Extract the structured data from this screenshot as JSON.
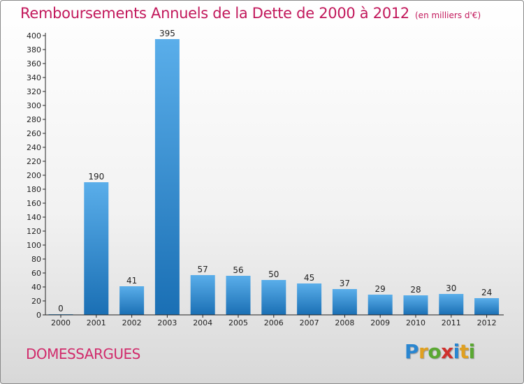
{
  "title": "Remboursements Annuels de la Dette de 2000 à 2012",
  "subtitle": "(en milliers d'€)",
  "commune": "DOMESSARGUES",
  "logo": {
    "text": "Proxiti",
    "letters": [
      "P",
      "r",
      "o",
      "x",
      "i",
      "t",
      "i"
    ]
  },
  "colors": {
    "title": "#c2185b",
    "bar_light": "#5aaeea",
    "bar_dark": "#1a6fb4",
    "axis": "#222222"
  },
  "chart_data": {
    "type": "bar",
    "title": "Remboursements Annuels de la Dette de 2000 à 2012",
    "subtitle": "(en milliers d'€)",
    "categories": [
      "2000",
      "2001",
      "2002",
      "2003",
      "2004",
      "2005",
      "2006",
      "2007",
      "2008",
      "2009",
      "2010",
      "2011",
      "2012"
    ],
    "values": [
      0,
      190,
      41,
      395,
      57,
      56,
      50,
      45,
      37,
      29,
      28,
      30,
      24
    ],
    "ylim": [
      0,
      400
    ],
    "yticks": [
      0,
      20,
      40,
      60,
      80,
      100,
      120,
      140,
      160,
      180,
      200,
      220,
      240,
      260,
      280,
      300,
      320,
      340,
      360,
      380,
      400
    ],
    "xlabel": "",
    "ylabel": "",
    "grid": false,
    "data_labels": true
  }
}
